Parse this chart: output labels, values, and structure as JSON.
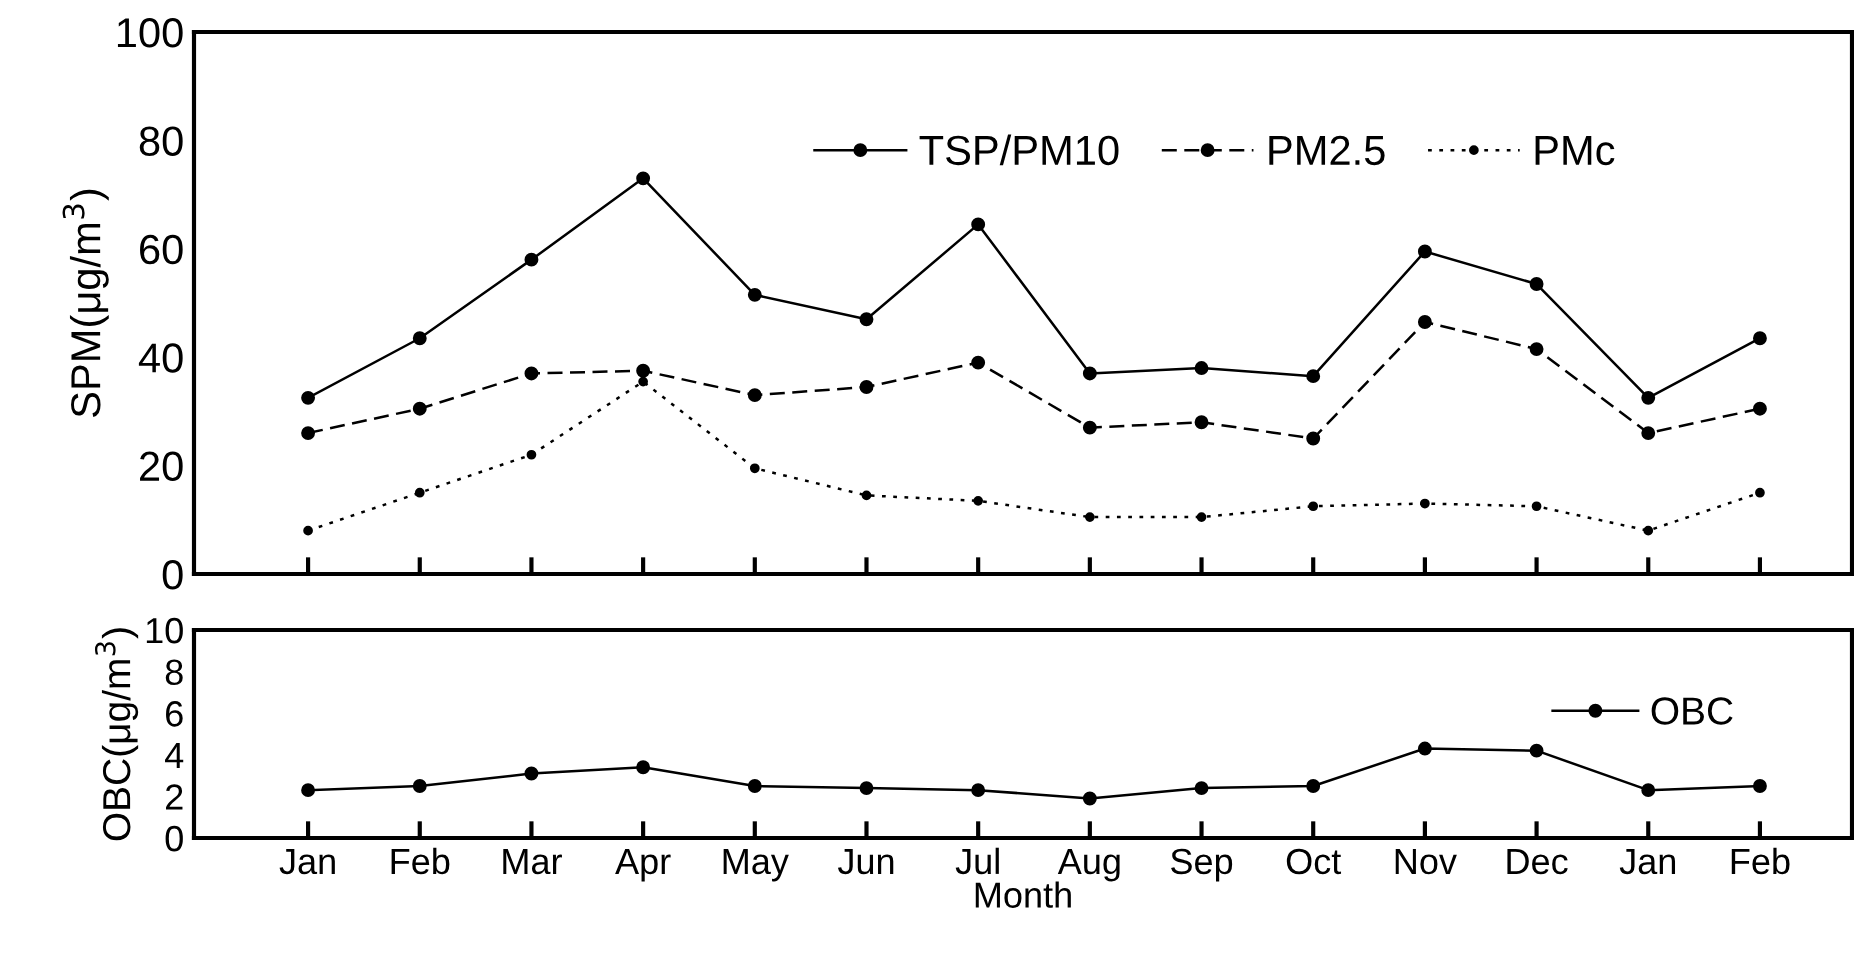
{
  "chart_data": [
    {
      "type": "line",
      "ylabel": "SPM(μg/m$^{3}$)",
      "categories": [
        null,
        null,
        null,
        null,
        null,
        null,
        null,
        null,
        null,
        null,
        null,
        null,
        null,
        null
      ],
      "ylim": [
        0,
        100
      ],
      "yticks": [
        0,
        20,
        40,
        60,
        80,
        100
      ],
      "legend": "top right",
      "marker": "circle",
      "grid": false,
      "series": [
        {
          "name": "TSP/PM10",
          "color": "#000000",
          "line_style": "solid",
          "values": [
            32.5,
            43.5,
            58,
            73,
            51.5,
            47,
            64.5,
            37,
            38,
            36.5,
            59.5,
            53.5,
            32.5,
            43.5
          ]
        },
        {
          "name": "PM2.5",
          "color": "#000000",
          "line_style": "dashed",
          "values": [
            26,
            30.5,
            37,
            37.5,
            33,
            34.5,
            39,
            27,
            28,
            25,
            46.5,
            41.5,
            26,
            30.5
          ]
        },
        {
          "name": "PMc",
          "color": "#000000",
          "line_style": "dotted",
          "values": [
            8,
            15,
            22,
            35.5,
            19.5,
            14.5,
            13.5,
            10.5,
            10.5,
            12.5,
            13,
            12.5,
            8,
            15
          ]
        }
      ]
    },
    {
      "type": "line",
      "xlabel": "Month",
      "ylabel": "OBC(μg/m$^{3}$)",
      "categories": [
        "Jan",
        "Feb",
        "Mar",
        "Apr",
        "May",
        "Jun",
        "Jul",
        "Aug",
        "Sep",
        "Oct",
        "Nov",
        "Dec",
        "Jan",
        "Feb"
      ],
      "ylim": [
        0,
        10
      ],
      "yticks": [
        0,
        2,
        4,
        6,
        8,
        10
      ],
      "legend": "top right",
      "marker": "circle",
      "grid": false,
      "series": [
        {
          "name": "OBC",
          "color": "#000000",
          "line_style": "solid",
          "values": [
            2.3,
            2.5,
            3.1,
            3.4,
            2.5,
            2.4,
            2.3,
            1.9,
            2.4,
            2.5,
            4.3,
            4.2,
            2.3,
            2.5
          ]
        }
      ]
    }
  ]
}
